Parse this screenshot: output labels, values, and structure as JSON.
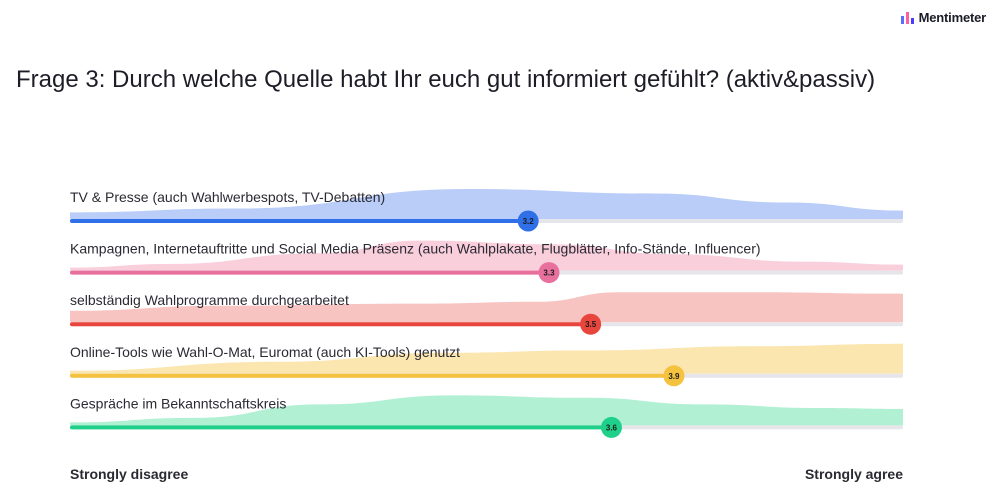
{
  "brand": {
    "name": "Mentimeter",
    "icon": "mentimeter-bars-icon",
    "colors": [
      "#5b6cff",
      "#ff5fa2",
      "#4a3cff"
    ]
  },
  "question": {
    "title": "Frage 3: Durch welche Quelle habt Ihr euch gut informiert gefühlt? (aktiv&passiv)"
  },
  "scale": {
    "min_label": "Strongly disagree",
    "max_label": "Strongly agree"
  },
  "chart_data": {
    "type": "bar",
    "orientation": "horizontal",
    "categories": [
      "TV & Presse (auch Wahlwerbespots, TV-Debatten)",
      "Kampagnen, Internetauftritte und Social Media Präsenz (auch Wahlplakate, Flugblätter, Info-Stände, Influencer)",
      "selbständig Wahlprogramme durchgearbeitet",
      "Online-Tools wie Wahl-O-Mat, Euromat (auch KI-Tools) genutzt",
      "Gespräche im Bekanntschaftskreis"
    ],
    "values": [
      3.2,
      3.3,
      3.5,
      3.9,
      3.6
    ],
    "value_labels": [
      "3.2",
      "3.3",
      "3.5",
      "3.9",
      "3.6"
    ],
    "colors": [
      "#2f6fe8",
      "#e8709c",
      "#e8453c",
      "#f4c23e",
      "#1fd08a"
    ],
    "distribution_colors": [
      "#b9cdf8",
      "#f9cfdc",
      "#f8c4c1",
      "#fbe6b0",
      "#b2f0d4"
    ],
    "title": "Frage 3: Durch welche Quelle habt Ihr euch gut informiert gefühlt? (aktiv&passiv)",
    "xlabel": "",
    "ylabel": "",
    "xlim": [
      1,
      5
    ],
    "x_axis_labels": [
      "Strongly disagree",
      "Strongly agree"
    ],
    "grid": false,
    "legend": "none"
  }
}
